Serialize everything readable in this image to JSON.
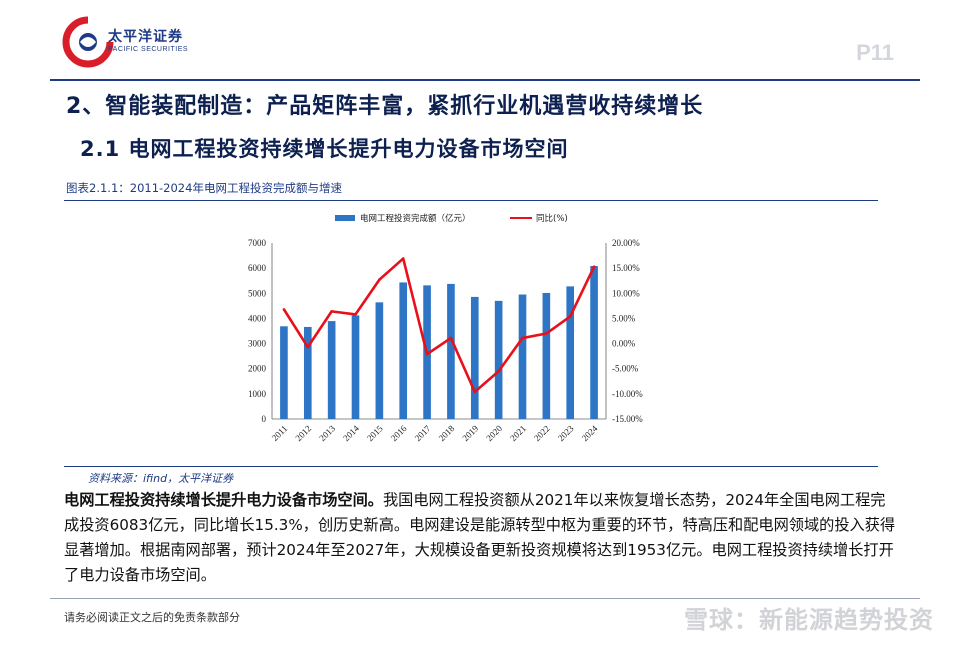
{
  "header": {
    "logo_name": "太平洋证券",
    "logo_sub": "PACIFIC SECURITIES",
    "page_number": "P11"
  },
  "section_title": "2、智能装配制造：产品矩阵丰富，紧抓行业机遇营收持续增长",
  "subsection_title": "2.1 电网工程投资持续增长提升电力设备市场空间",
  "figure_caption": "图表2.1.1：2011-2024年电网工程投资完成额与增速",
  "chart_data": {
    "type": "bar",
    "categories": [
      "2011",
      "2012",
      "2013",
      "2014",
      "2015",
      "2016",
      "2017",
      "2018",
      "2019",
      "2020",
      "2021",
      "2022",
      "2023",
      "2024"
    ],
    "series": [
      {
        "name": "电网工程投资完成额（亿元）",
        "type": "bar",
        "axis": "left",
        "color": "#2e75c5",
        "values": [
          3687,
          3661,
          3894,
          4118,
          4640,
          5431,
          5315,
          5373,
          4856,
          4699,
          4951,
          5012,
          5275,
          6083
        ]
      },
      {
        "name": "同比(%)",
        "type": "line",
        "axis": "right",
        "color": "#e8101a",
        "values": [
          6.8,
          -0.7,
          6.4,
          5.8,
          12.7,
          16.9,
          -2.1,
          1.1,
          -9.6,
          -5.5,
          1.1,
          2.0,
          5.4,
          15.3
        ]
      }
    ],
    "y_left": {
      "min": 0,
      "max": 7000,
      "step": 1000,
      "ticks": [
        "0",
        "1000",
        "2000",
        "3000",
        "4000",
        "5000",
        "6000",
        "7000"
      ]
    },
    "y_right": {
      "min": -15,
      "max": 20,
      "step": 5,
      "ticks": [
        "-15.00%",
        "-10.00%",
        "-5.00%",
        "0.00%",
        "5.00%",
        "10.00%",
        "15.00%",
        "20.00%"
      ]
    },
    "grid": false,
    "legend_position": "top"
  },
  "source": "资料来源：ifind，太平洋证券",
  "body": {
    "lead": "电网工程投资持续增长提升电力设备市场空间。",
    "text": "我国电网工程投资额从2021年以来恢复增长态势，2024年全国电网工程完成投资6083亿元，同比增长15.3%，创历史新高。电网建设是能源转型中枢为重要的环节，特高压和配电网领域的投入获得显著增加。根据南网部署，预计2024年至2027年，大规模设备更新投资规模将达到1953亿元。电网工程投资持续增长打开了电力设备市场空间。"
  },
  "footer": {
    "disclaimer": "请务必阅读正文之后的免责条款部分",
    "watermark": "雪球：新能源趋势投资"
  }
}
